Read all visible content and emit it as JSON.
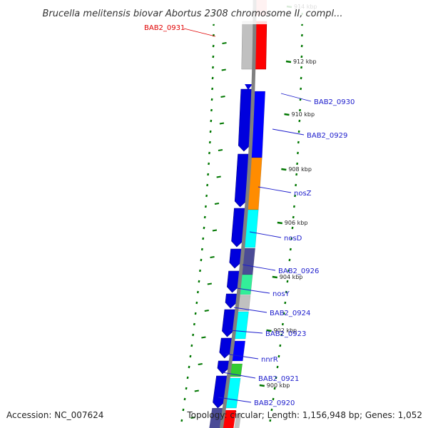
{
  "title": "Brucella melitensis biovar Abortus 2308 chromosome II, compl...",
  "accession": "Accession: NC_007624",
  "summary": "Topology: circular; Length: 1,156,948 bp; Genes: 1,052",
  "colors": {
    "backbone": "#808080",
    "cds_forward": "#0000dd",
    "selected": "#ff0000",
    "highlight_gray": "#c0c0c0",
    "tick": "#007700",
    "label": "#1c1ccc"
  },
  "ticks": [
    {
      "label": "914 kbp"
    },
    {
      "label": "912 kbp"
    },
    {
      "label": "910 kbp"
    },
    {
      "label": "908 kbp"
    },
    {
      "label": "906 kbp"
    },
    {
      "label": "904 kbp"
    },
    {
      "label": "902 kbp"
    },
    {
      "label": "900 kbp"
    }
  ],
  "genes": [
    {
      "name": "BAB2_0931",
      "color": "#ff0000",
      "selected": true
    },
    {
      "name": "BAB2_0930",
      "color": "#0000ff"
    },
    {
      "name": "BAB2_0929",
      "color": "#ff8c00"
    },
    {
      "name": "nosZ",
      "color": "#00ffff"
    },
    {
      "name": "nosD",
      "color": "#4b4b96"
    },
    {
      "name": "BAB2_0926",
      "color": "#33ee99"
    },
    {
      "name": "nosY",
      "color": "#c0c0c0"
    },
    {
      "name": "BAB2_0924",
      "color": "#00ffff"
    },
    {
      "name": "BAB2_0923",
      "color": "#0000ff"
    },
    {
      "name": "nnrR",
      "color": "#33cc33"
    },
    {
      "name": "BAB2_0921",
      "color": "#00ffff"
    },
    {
      "name": "BAB2_0920",
      "color": "#4b4b96"
    }
  ]
}
